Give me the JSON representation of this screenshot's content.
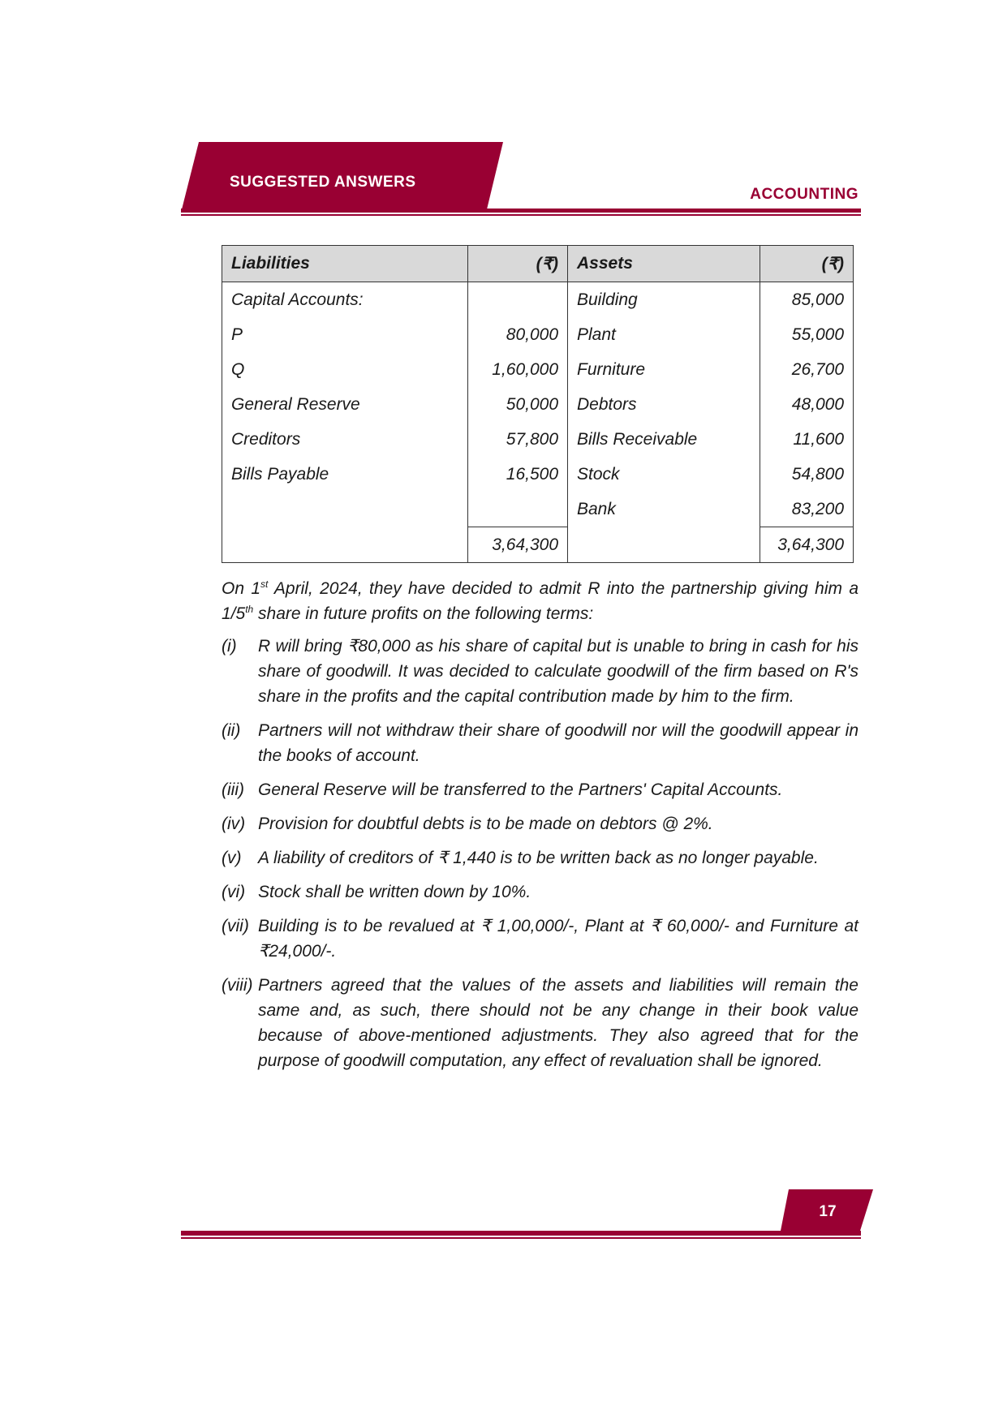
{
  "header": {
    "section": "SUGGESTED ANSWERS",
    "subject": "ACCOUNTING",
    "accent_color": "#990033"
  },
  "balance_sheet": {
    "headers": [
      "Liabilities",
      "(₹)",
      "Assets",
      "(₹)"
    ],
    "rows": [
      [
        "Capital Accounts:",
        "",
        "Building",
        "85,000"
      ],
      [
        "P",
        "80,000",
        "Plant",
        "55,000"
      ],
      [
        "Q",
        "1,60,000",
        "Furniture",
        "26,700"
      ],
      [
        "General Reserve",
        "50,000",
        "Debtors",
        "48,000"
      ],
      [
        "Creditors",
        "57,800",
        "Bills Receivable",
        "11,600"
      ],
      [
        "Bills Payable",
        "16,500",
        "Stock",
        "54,800"
      ],
      [
        "",
        "",
        "Bank",
        "83,200"
      ]
    ],
    "totals": [
      "3,64,300",
      "3,64,300"
    ]
  },
  "intro": {
    "p1": "On 1",
    "sup1": "st",
    "p2": " April, 2024, they have decided to admit R into the partnership giving him a 1/5",
    "sup2": "th",
    "p3": " share in future profits on the following terms:"
  },
  "terms": [
    {
      "marker": "(i)",
      "text": "R will bring ₹80,000 as his share of capital but is unable to bring in cash for his share of goodwill. It was decided to calculate goodwill of the firm based on R's share in the profits and the capital contribution made by him to the firm."
    },
    {
      "marker": "(ii)",
      "text": "Partners will not withdraw their share of goodwill nor will the goodwill appear in the books of account."
    },
    {
      "marker": "(iii)",
      "text": "General Reserve will be transferred to the Partners' Capital Accounts."
    },
    {
      "marker": "(iv)",
      "text": "Provision for doubtful debts is to be made on debtors @ 2%."
    },
    {
      "marker": "(v)",
      "text": "A liability of creditors of ₹ 1,440 is to be written back as no longer payable."
    },
    {
      "marker": "(vi)",
      "text": "Stock shall be written down by 10%."
    },
    {
      "marker": "(vii)",
      "text": "Building is to be revalued at ₹ 1,00,000/-, Plant at ₹ 60,000/- and Furniture at ₹24,000/-."
    },
    {
      "marker": "(viii)",
      "text": "Partners agreed that the values of the assets and liabilities will remain the same and, as such, there should not be any change in their book value because of above-mentioned adjustments. They also agreed that for the purpose of goodwill computation, any effect of revaluation shall be ignored."
    }
  ],
  "footer": {
    "page_number": "17"
  }
}
